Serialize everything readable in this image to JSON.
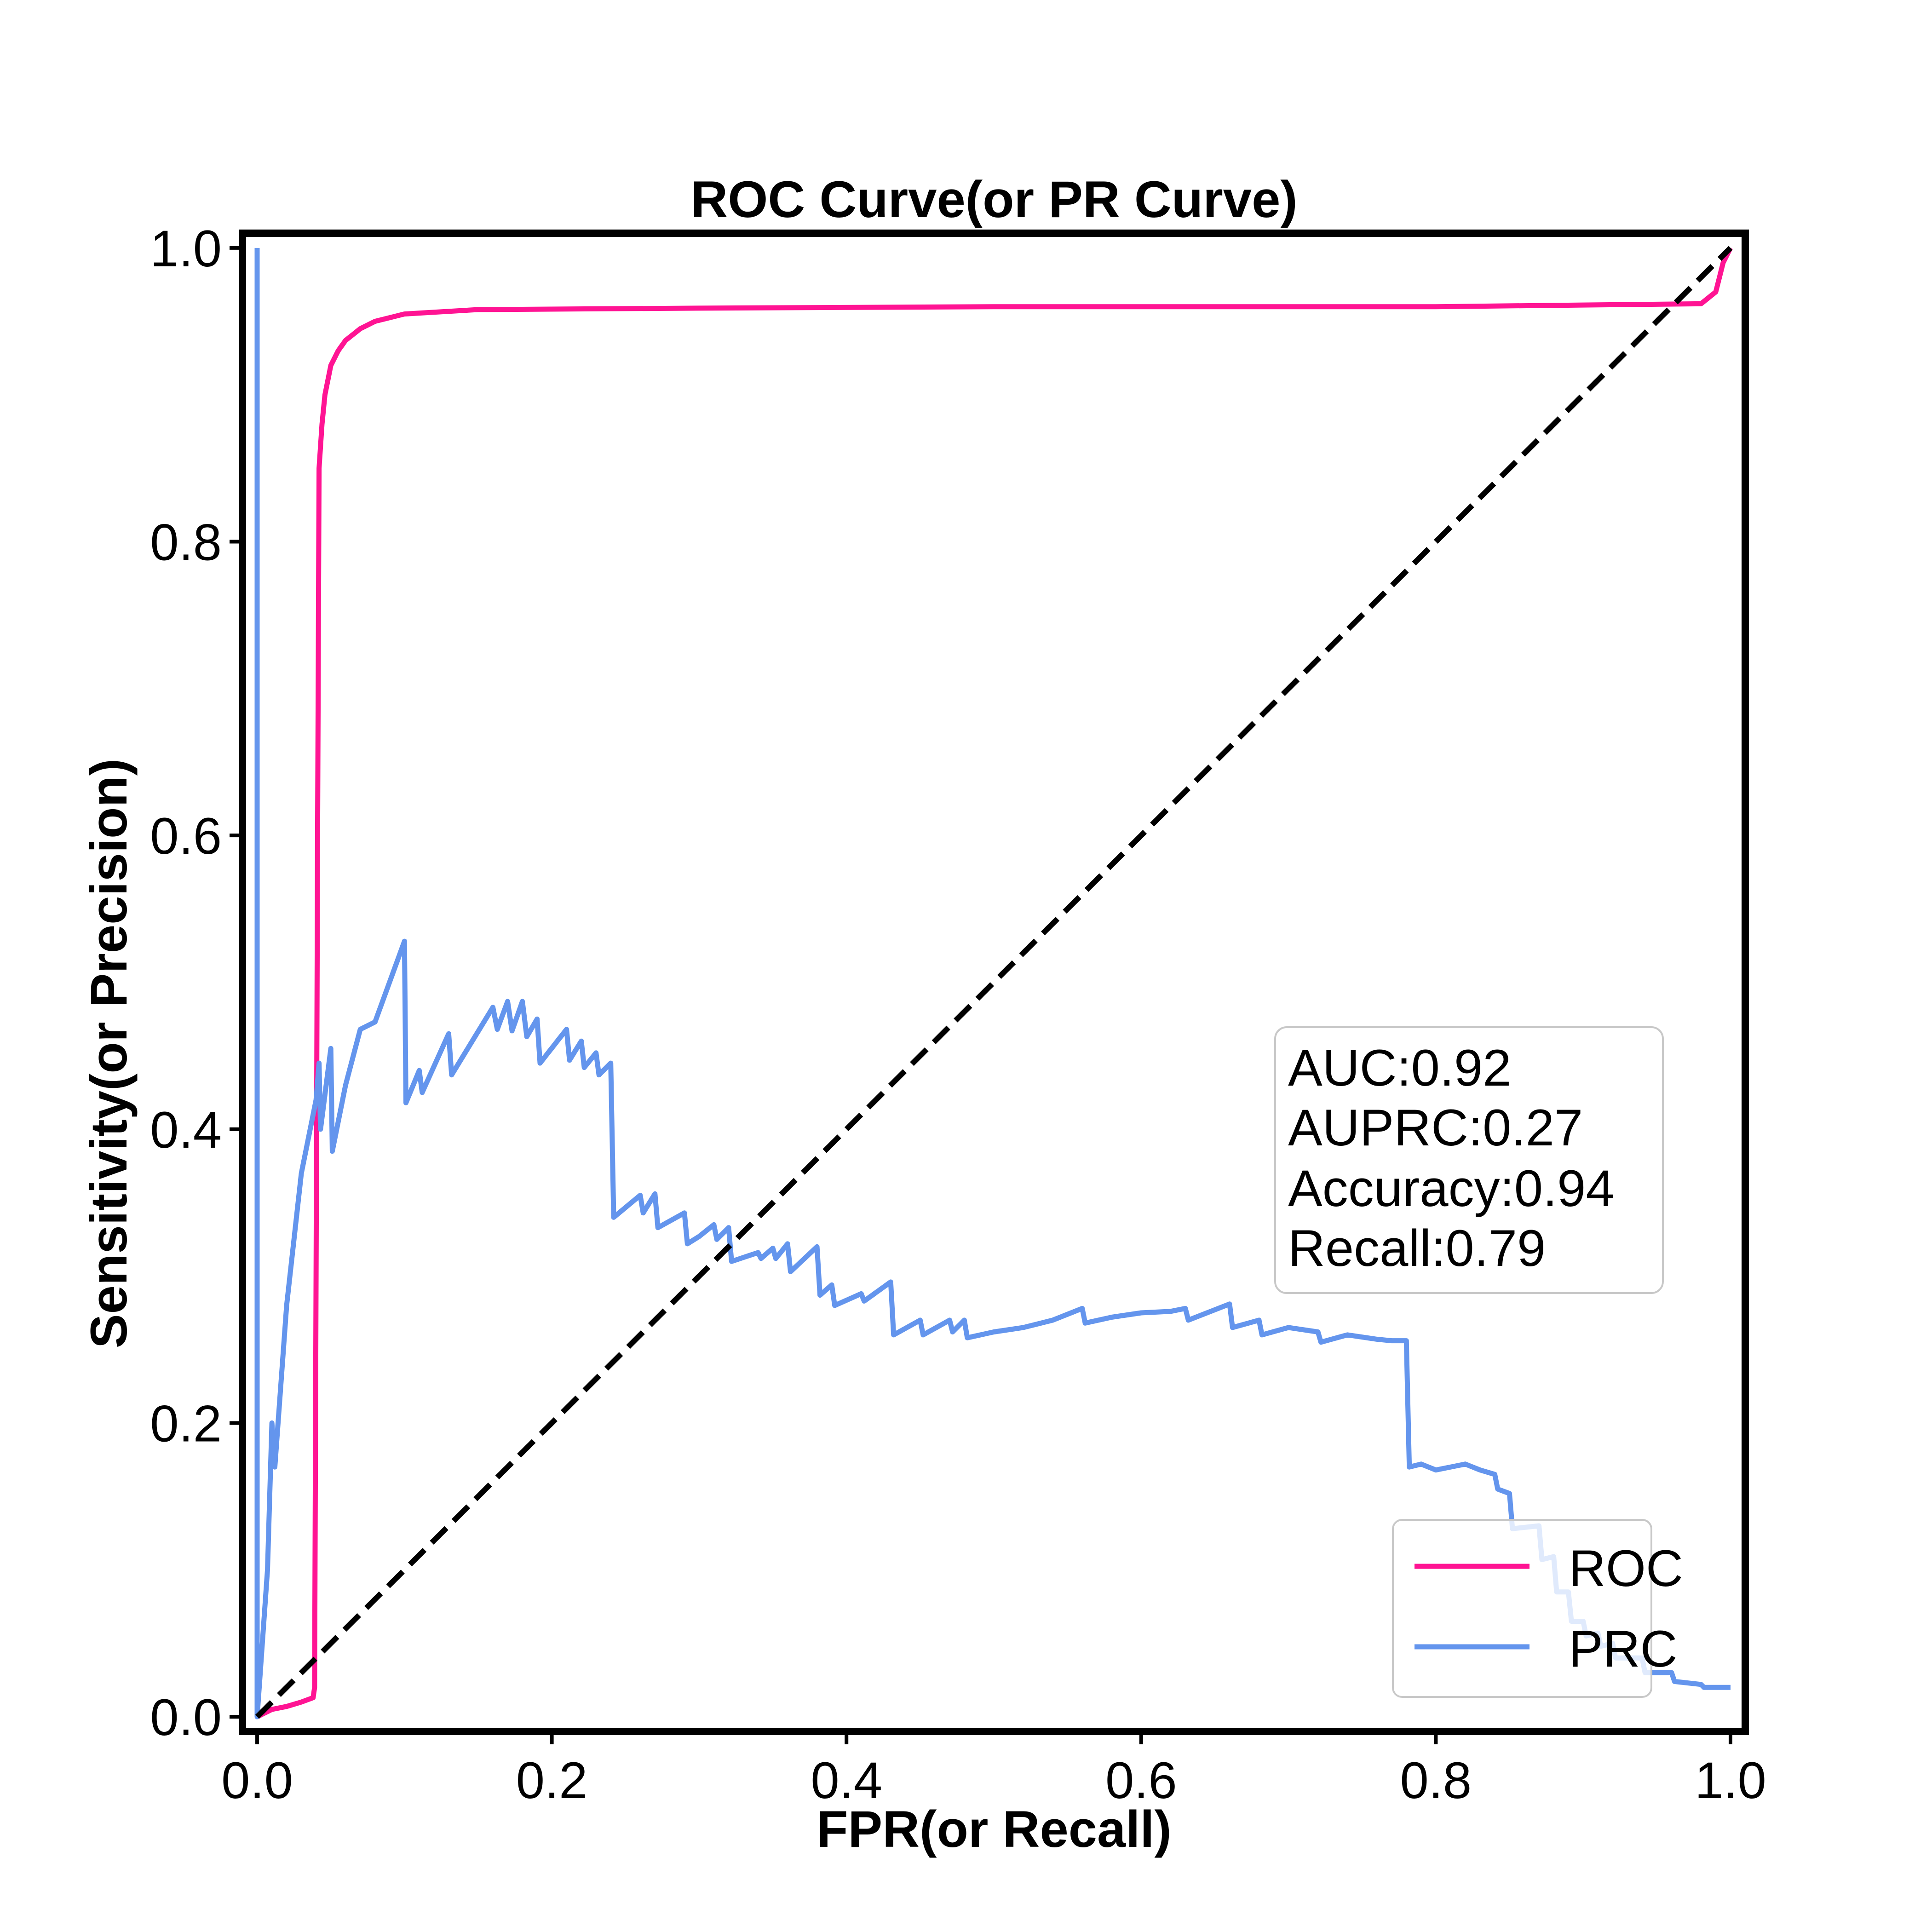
{
  "chart_data": {
    "type": "line",
    "title": "ROC Curve(or PR Curve)",
    "xlabel": "FPR(or Recall)",
    "ylabel": "Sensitivity(or Precision)",
    "xlim": [
      -0.01,
      1.01
    ],
    "ylim": [
      -0.01,
      1.01
    ],
    "xticks": [
      "0.0",
      "0.2",
      "0.4",
      "0.6",
      "0.8",
      "1.0"
    ],
    "yticks": [
      "0.0",
      "0.2",
      "0.4",
      "0.6",
      "0.8",
      "1.0"
    ],
    "grid": false,
    "legend_position": "lower right",
    "series": [
      {
        "name": "ROC",
        "color": "#ff1493",
        "points": [
          [
            0.0,
            0.0
          ],
          [
            0.01,
            0.005
          ],
          [
            0.02,
            0.007
          ],
          [
            0.03,
            0.01
          ],
          [
            0.038,
            0.013
          ],
          [
            0.039,
            0.02
          ],
          [
            0.04,
            0.3
          ],
          [
            0.041,
            0.6
          ],
          [
            0.042,
            0.85
          ],
          [
            0.044,
            0.88
          ],
          [
            0.046,
            0.9
          ],
          [
            0.05,
            0.92
          ],
          [
            0.055,
            0.93
          ],
          [
            0.06,
            0.937
          ],
          [
            0.07,
            0.945
          ],
          [
            0.08,
            0.95
          ],
          [
            0.1,
            0.955
          ],
          [
            0.15,
            0.958
          ],
          [
            0.3,
            0.959
          ],
          [
            0.5,
            0.96
          ],
          [
            0.8,
            0.96
          ],
          [
            0.98,
            0.962
          ],
          [
            0.99,
            0.97
          ],
          [
            0.995,
            0.99
          ],
          [
            1.0,
            1.0
          ]
        ]
      },
      {
        "name": "PRC",
        "color": "#6495ed",
        "points": [
          [
            0.0,
            1.0
          ],
          [
            0.0,
            0.0
          ],
          [
            0.007,
            0.1
          ],
          [
            0.01,
            0.2
          ],
          [
            0.012,
            0.17
          ],
          [
            0.02,
            0.28
          ],
          [
            0.03,
            0.37
          ],
          [
            0.04,
            0.42
          ],
          [
            0.042,
            0.445
          ],
          [
            0.043,
            0.4
          ],
          [
            0.05,
            0.455
          ],
          [
            0.051,
            0.385
          ],
          [
            0.06,
            0.43
          ],
          [
            0.07,
            0.468
          ],
          [
            0.08,
            0.473
          ],
          [
            0.1,
            0.528
          ],
          [
            0.101,
            0.418
          ],
          [
            0.11,
            0.44
          ],
          [
            0.112,
            0.425
          ],
          [
            0.13,
            0.465
          ],
          [
            0.132,
            0.437
          ],
          [
            0.16,
            0.483
          ],
          [
            0.163,
            0.468
          ],
          [
            0.17,
            0.487
          ],
          [
            0.173,
            0.467
          ],
          [
            0.18,
            0.487
          ],
          [
            0.183,
            0.463
          ],
          [
            0.19,
            0.475
          ],
          [
            0.192,
            0.445
          ],
          [
            0.21,
            0.468
          ],
          [
            0.212,
            0.447
          ],
          [
            0.22,
            0.46
          ],
          [
            0.222,
            0.442
          ],
          [
            0.23,
            0.452
          ],
          [
            0.232,
            0.437
          ],
          [
            0.24,
            0.445
          ],
          [
            0.242,
            0.34
          ],
          [
            0.26,
            0.355
          ],
          [
            0.262,
            0.343
          ],
          [
            0.27,
            0.356
          ],
          [
            0.272,
            0.333
          ],
          [
            0.29,
            0.343
          ],
          [
            0.292,
            0.322
          ],
          [
            0.3,
            0.327
          ],
          [
            0.31,
            0.335
          ],
          [
            0.312,
            0.325
          ],
          [
            0.32,
            0.333
          ],
          [
            0.322,
            0.31
          ],
          [
            0.34,
            0.316
          ],
          [
            0.342,
            0.312
          ],
          [
            0.35,
            0.319
          ],
          [
            0.352,
            0.312
          ],
          [
            0.36,
            0.322
          ],
          [
            0.362,
            0.303
          ],
          [
            0.38,
            0.32
          ],
          [
            0.382,
            0.287
          ],
          [
            0.39,
            0.294
          ],
          [
            0.392,
            0.28
          ],
          [
            0.41,
            0.288
          ],
          [
            0.412,
            0.283
          ],
          [
            0.43,
            0.296
          ],
          [
            0.432,
            0.26
          ],
          [
            0.45,
            0.27
          ],
          [
            0.452,
            0.26
          ],
          [
            0.47,
            0.27
          ],
          [
            0.472,
            0.262
          ],
          [
            0.48,
            0.27
          ],
          [
            0.482,
            0.258
          ],
          [
            0.5,
            0.262
          ],
          [
            0.52,
            0.265
          ],
          [
            0.54,
            0.27
          ],
          [
            0.56,
            0.278
          ],
          [
            0.562,
            0.268
          ],
          [
            0.58,
            0.272
          ],
          [
            0.6,
            0.275
          ],
          [
            0.62,
            0.276
          ],
          [
            0.63,
            0.278
          ],
          [
            0.632,
            0.27
          ],
          [
            0.66,
            0.281
          ],
          [
            0.662,
            0.265
          ],
          [
            0.68,
            0.27
          ],
          [
            0.682,
            0.26
          ],
          [
            0.7,
            0.265
          ],
          [
            0.72,
            0.262
          ],
          [
            0.722,
            0.255
          ],
          [
            0.74,
            0.26
          ],
          [
            0.76,
            0.257
          ],
          [
            0.77,
            0.256
          ],
          [
            0.78,
            0.256
          ],
          [
            0.782,
            0.17
          ],
          [
            0.79,
            0.172
          ],
          [
            0.8,
            0.168
          ],
          [
            0.82,
            0.172
          ],
          [
            0.83,
            0.168
          ],
          [
            0.84,
            0.165
          ],
          [
            0.842,
            0.155
          ],
          [
            0.85,
            0.152
          ],
          [
            0.852,
            0.128
          ],
          [
            0.87,
            0.13
          ],
          [
            0.872,
            0.107
          ],
          [
            0.88,
            0.109
          ],
          [
            0.882,
            0.085
          ],
          [
            0.89,
            0.085
          ],
          [
            0.892,
            0.065
          ],
          [
            0.9,
            0.065
          ],
          [
            0.902,
            0.055
          ],
          [
            0.91,
            0.057
          ],
          [
            0.912,
            0.048
          ],
          [
            0.92,
            0.05
          ],
          [
            0.922,
            0.04
          ],
          [
            0.94,
            0.04
          ],
          [
            0.942,
            0.03
          ],
          [
            0.96,
            0.03
          ],
          [
            0.962,
            0.024
          ],
          [
            0.98,
            0.022
          ],
          [
            0.982,
            0.02
          ],
          [
            1.0,
            0.02
          ]
        ]
      },
      {
        "name": "",
        "color": "#000000",
        "style": "dashed",
        "points": [
          [
            0.0,
            0.0
          ],
          [
            1.0,
            1.0
          ]
        ]
      }
    ],
    "annotation": {
      "lines": [
        "AUC:0.92",
        "AUPRC:0.27",
        "Accuracy:0.94",
        "Recall:0.79"
      ]
    },
    "legend": [
      "ROC",
      "PRC"
    ]
  }
}
